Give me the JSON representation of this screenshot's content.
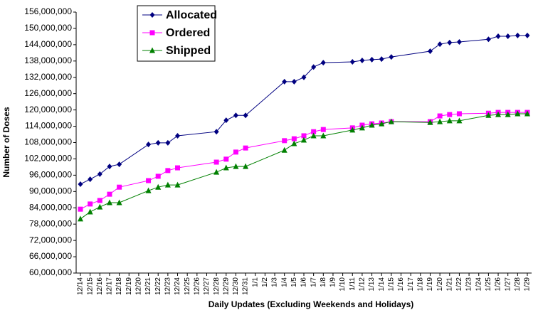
{
  "chart_data": {
    "type": "line",
    "connect_gaps": true,
    "x_label": "Daily Updates (Excluding Weekends and Holidays)",
    "y_label": "Number of Doses",
    "categories": [
      "12/14",
      "12/15",
      "12/16",
      "12/17",
      "12/18",
      "12/19",
      "12/20",
      "12/21",
      "12/22",
      "12/23",
      "12/24",
      "12/25",
      "12/26",
      "12/27",
      "12/28",
      "12/29",
      "12/30",
      "12/31",
      "1/1",
      "1/2",
      "1/3",
      "1/4",
      "1/5",
      "1/6",
      "1/7",
      "1/8",
      "1/9",
      "1/10",
      "1/11",
      "1/12",
      "1/13",
      "1/14",
      "1/15",
      "1/16",
      "1/17",
      "1/18",
      "1/19",
      "1/20",
      "1/21",
      "1/22",
      "1/23",
      "1/24",
      "1/25",
      "1/26",
      "1/27",
      "1/28",
      "1/29"
    ],
    "series": [
      {
        "name": "Allocated",
        "color": "#000080",
        "marker": "diamond",
        "values": [
          92700000,
          94500000,
          96400000,
          99200000,
          100000000,
          null,
          null,
          107300000,
          107900000,
          107900000,
          110500000,
          null,
          null,
          null,
          112000000,
          116200000,
          118000000,
          118000000,
          null,
          null,
          null,
          130400000,
          130400000,
          132000000,
          135800000,
          137400000,
          null,
          null,
          137700000,
          138200000,
          138500000,
          138700000,
          139500000,
          null,
          null,
          null,
          141600000,
          144200000,
          144800000,
          145000000,
          null,
          null,
          146000000,
          147100000,
          147100000,
          147400000,
          147400000
        ]
      },
      {
        "name": "Ordered",
        "color": "#ff00ff",
        "marker": "square",
        "values": [
          83500000,
          85400000,
          86700000,
          89000000,
          91600000,
          null,
          null,
          94000000,
          95600000,
          97700000,
          98700000,
          null,
          null,
          null,
          100800000,
          101900000,
          104500000,
          106000000,
          null,
          null,
          null,
          108700000,
          109400000,
          110500000,
          112000000,
          112800000,
          null,
          null,
          113400000,
          114400000,
          114900000,
          115200000,
          115700000,
          null,
          null,
          null,
          115700000,
          117800000,
          118300000,
          118600000,
          null,
          null,
          118800000,
          119100000,
          119100000,
          119100000,
          119100000
        ]
      },
      {
        "name": "Shipped",
        "color": "#008000",
        "marker": "triangle",
        "values": [
          79900000,
          82500000,
          84300000,
          85900000,
          85900000,
          null,
          null,
          90300000,
          91600000,
          92400000,
          92400000,
          null,
          null,
          null,
          97100000,
          98700000,
          99200000,
          99200000,
          null,
          null,
          null,
          105200000,
          107600000,
          108900000,
          110500000,
          110500000,
          null,
          null,
          112600000,
          113400000,
          114400000,
          114900000,
          115700000,
          null,
          null,
          null,
          115400000,
          115700000,
          116000000,
          116000000,
          null,
          null,
          118000000,
          118300000,
          118300000,
          118600000,
          118600000
        ]
      }
    ],
    "ylim": [
      60000000,
      156000000
    ],
    "yticks": [
      {
        "value": 60000000,
        "label": "60,000,000"
      },
      {
        "value": 66000000,
        "label": "66,000,000"
      },
      {
        "value": 72000000,
        "label": "72,000,000"
      },
      {
        "value": 78000000,
        "label": "78,000,000"
      },
      {
        "value": 84000000,
        "label": "84,000,000"
      },
      {
        "value": 90000000,
        "label": "90,000,000"
      },
      {
        "value": 96000000,
        "label": "96,000,000"
      },
      {
        "value": 102000000,
        "label": "102,000,000"
      },
      {
        "value": 108000000,
        "label": "108,000,000"
      },
      {
        "value": 114000000,
        "label": "114,000,000"
      },
      {
        "value": 120000000,
        "label": "120,000,000"
      },
      {
        "value": 126000000,
        "label": "126,000,000"
      },
      {
        "value": 132000000,
        "label": "132,000,000"
      },
      {
        "value": 138000000,
        "label": "138,000,000"
      },
      {
        "value": 144000000,
        "label": "144,000,000"
      },
      {
        "value": 150000000,
        "label": "150,000,000"
      },
      {
        "value": 156000000,
        "label": "156,000,000"
      }
    ],
    "grid": false
  }
}
